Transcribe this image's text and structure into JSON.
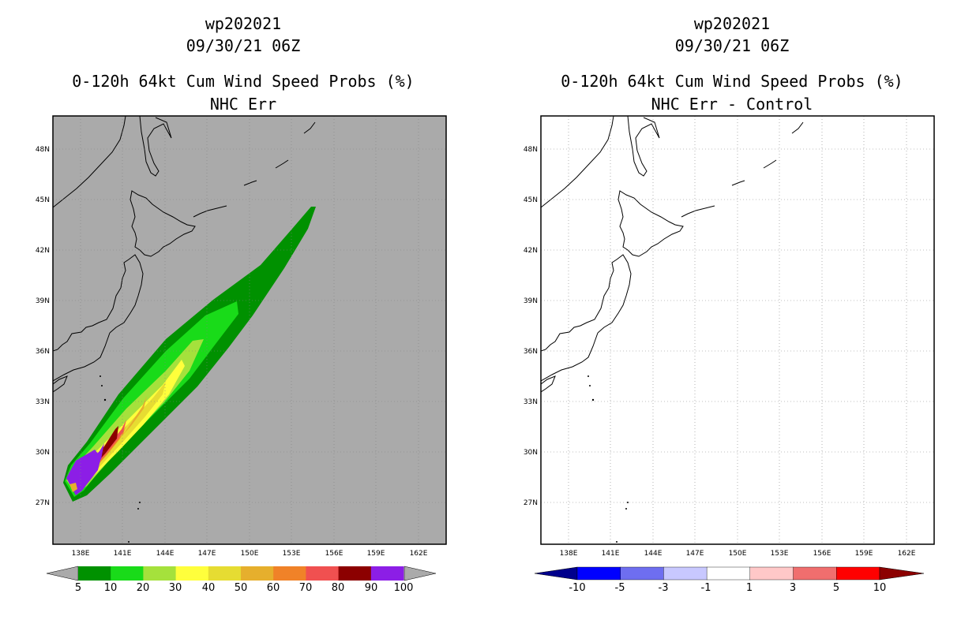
{
  "left_panel": {
    "storm_id": "wp202021",
    "datetime": "09/30/21 06Z",
    "product": "0-120h 64kt Cum Wind Speed Probs (%)",
    "subtitle": "NHC Err",
    "colorbar": {
      "labels": [
        "5",
        "10",
        "20",
        "30",
        "40",
        "50",
        "60",
        "70",
        "80",
        "90",
        "100"
      ],
      "colors": [
        "#009100",
        "#19db19",
        "#a5e13c",
        "#ffff3c",
        "#e6dc32",
        "#e6af2d",
        "#f08228",
        "#f05050",
        "#8c0000",
        "#8c1ee6"
      ]
    }
  },
  "right_panel": {
    "storm_id": "wp202021",
    "datetime": "09/30/21 06Z",
    "product": "0-120h 64kt Cum Wind Speed Probs (%)",
    "subtitle": "NHC Err - Control",
    "colorbar": {
      "labels": [
        "-10",
        "-5",
        "-3",
        "-1",
        "1",
        "3",
        "5",
        "10"
      ],
      "colors": [
        "#00008c",
        "#0000ff",
        "#6e6ef0",
        "#c8c8ff",
        "#ffffff",
        "#ffc8c8",
        "#f06e6e",
        "#ff0000",
        "#8c0000"
      ]
    }
  },
  "map": {
    "lat_labels": [
      "48N",
      "45N",
      "42N",
      "39N",
      "36N",
      "33N",
      "30N",
      "27N"
    ],
    "lon_labels": [
      "138E",
      "141E",
      "144E",
      "147E",
      "150E",
      "153E",
      "156E",
      "159E",
      "162E"
    ],
    "ocean_color_left": "#aaaaaa",
    "ocean_color_right": "#ffffff"
  }
}
